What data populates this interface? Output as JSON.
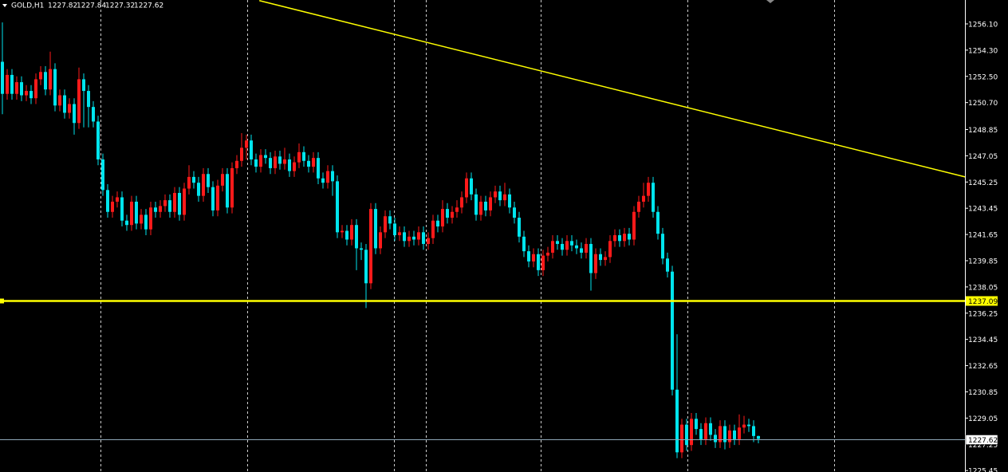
{
  "chart_data": {
    "type": "candlestick",
    "symbol": "GOLD,H1",
    "up_color": "#ff1a1a",
    "down_color": "#00e5ee",
    "ylim": [
      1225.35,
      1257.74
    ],
    "yticks": [
      {
        "value": 1256.1,
        "label": "1256.10"
      },
      {
        "value": 1254.3,
        "label": "1254.30"
      },
      {
        "value": 1252.5,
        "label": "1252.50"
      },
      {
        "value": 1250.7,
        "label": "1250.70"
      },
      1248.85,
      1247.05,
      1245.25,
      1243.45,
      1241.65,
      1239.85,
      1238.05,
      1236.25,
      1234.45,
      1232.65,
      1230.85,
      1229.05,
      1227.25,
      1225.45
    ],
    "vgrid": [
      20.5,
      51.2,
      81.8,
      88.5,
      112.5,
      143.2,
      173.8
    ],
    "hline": 1237.09,
    "hline_color": "#ffff00",
    "trend_line": {
      "x": [
        53.7,
        201.2
      ],
      "y": [
        1257.7,
        1245.6
      ],
      "color": "#ffff00"
    },
    "open": [
      1253.5,
      1251.3,
      1252.6,
      1251.3,
      1252.1,
      1251.2,
      1251.5,
      1251.0,
      1252.3,
      1252.8,
      1251.6,
      1253.0,
      1250.5,
      1251.2,
      1250.0,
      1250.6,
      1249.3,
      1252.3,
      1251.5,
      1250.4,
      1249.4,
      1246.8,
      1244.7,
      1243.2,
      1243.9,
      1244.2,
      1242.6,
      1242.3,
      1243.9,
      1242.4,
      1243.0,
      1242.0,
      1243.5,
      1243.2,
      1243.6,
      1244.0,
      1243.2,
      1244.5,
      1243.0,
      1244.8,
      1245.6,
      1245.2,
      1244.3,
      1245.8,
      1244.9,
      1243.3,
      1245.0,
      1245.8,
      1243.5,
      1246.2,
      1246.7,
      1247.6,
      1248.1,
      1246.8,
      1246.3,
      1247.1,
      1246.9,
      1246.2,
      1247.0,
      1246.5,
      1246.8,
      1246.0,
      1246.6,
      1247.3,
      1246.7,
      1246.3,
      1246.9,
      1245.5,
      1245.2,
      1246.0,
      1245.3,
      1241.8,
      1241.9,
      1241.3,
      1242.3,
      1240.7,
      1240.6,
      1238.3,
      1243.4,
      1240.7,
      1241.8,
      1242.9,
      1242.4,
      1241.6,
      1241.8,
      1241.2,
      1241.5,
      1241.3,
      1241.8,
      1241.0,
      1241.4,
      1242.6,
      1242.2,
      1243.4,
      1242.8,
      1243.2,
      1243.5,
      1244.2,
      1245.5,
      1244.4,
      1243.0,
      1243.9,
      1243.3,
      1244.2,
      1244.6,
      1244.0,
      1244.4,
      1243.5,
      1242.8,
      1241.5,
      1240.5,
      1239.8,
      1240.3,
      1239.2,
      1240.2,
      1240.4,
      1241.2,
      1241.0,
      1240.6,
      1241.2,
      1240.9,
      1240.7,
      1240.4,
      1241.0,
      1239.0,
      1240.3,
      1239.9,
      1240.1,
      1241.2,
      1241.6,
      1241.2,
      1241.7,
      1241.3,
      1243.2,
      1243.9,
      1244.3,
      1245.2,
      1243.2,
      1241.7,
      1240.0,
      1239.1,
      1231.0,
      1226.7,
      1228.6,
      1227.2,
      1229.0,
      1228.3,
      1227.6,
      1228.7,
      1227.9,
      1227.4,
      1228.5,
      1227.4,
      1228.2,
      1227.6,
      1228.4,
      1228.6,
      1228.5,
      1227.82
    ],
    "high": [
      1256.2,
      1253.0,
      1253.0,
      1252.5,
      1252.5,
      1251.9,
      1251.9,
      1252.7,
      1253.2,
      1253.2,
      1254.2,
      1253.4,
      1251.6,
      1251.6,
      1251.0,
      1251.0,
      1253.1,
      1252.7,
      1251.9,
      1250.8,
      1249.8,
      1247.2,
      1245.1,
      1244.3,
      1244.6,
      1244.6,
      1243.0,
      1244.3,
      1244.3,
      1243.4,
      1243.4,
      1243.9,
      1243.9,
      1244.0,
      1244.4,
      1244.4,
      1244.9,
      1244.9,
      1245.2,
      1246.4,
      1246.0,
      1245.6,
      1246.2,
      1246.2,
      1245.3,
      1245.4,
      1246.2,
      1246.2,
      1246.6,
      1247.1,
      1248.6,
      1248.5,
      1248.5,
      1247.2,
      1247.5,
      1247.5,
      1247.3,
      1247.4,
      1247.4,
      1247.6,
      1247.2,
      1247.0,
      1247.9,
      1247.7,
      1247.1,
      1247.3,
      1247.3,
      1245.9,
      1246.4,
      1246.4,
      1245.7,
      1242.3,
      1242.3,
      1242.7,
      1242.7,
      1241.1,
      1241.0,
      1243.8,
      1243.8,
      1242.2,
      1243.3,
      1243.3,
      1242.8,
      1242.2,
      1242.2,
      1241.9,
      1241.9,
      1242.2,
      1242.2,
      1241.8,
      1243.0,
      1243.0,
      1244.0,
      1243.8,
      1243.6,
      1244.0,
      1244.6,
      1245.9,
      1245.9,
      1244.8,
      1244.3,
      1244.3,
      1244.6,
      1245.0,
      1245.0,
      1245.2,
      1244.8,
      1243.9,
      1243.2,
      1241.9,
      1240.9,
      1240.7,
      1240.7,
      1240.6,
      1240.8,
      1241.6,
      1241.6,
      1241.4,
      1241.6,
      1241.6,
      1241.3,
      1241.1,
      1241.4,
      1241.4,
      1240.7,
      1240.7,
      1240.5,
      1241.6,
      1242.0,
      1242.0,
      1242.1,
      1242.1,
      1243.6,
      1244.3,
      1245.2,
      1245.6,
      1245.6,
      1243.6,
      1242.1,
      1240.4,
      1239.5,
      1234.8,
      1229.0,
      1229.0,
      1229.4,
      1229.4,
      1228.7,
      1229.1,
      1229.1,
      1228.3,
      1228.9,
      1228.9,
      1228.6,
      1228.6,
      1229.3,
      1229.2,
      1229.0,
      1228.9,
      1227.84
    ],
    "low": [
      1249.9,
      1250.9,
      1250.9,
      1250.9,
      1250.8,
      1250.8,
      1250.6,
      1250.6,
      1251.9,
      1251.2,
      1251.2,
      1250.1,
      1250.1,
      1249.6,
      1249.6,
      1248.5,
      1248.9,
      1249.0,
      1249.0,
      1249.0,
      1246.4,
      1244.3,
      1242.8,
      1242.8,
      1243.5,
      1242.2,
      1241.9,
      1241.9,
      1242.0,
      1242.0,
      1241.6,
      1241.6,
      1242.8,
      1242.8,
      1243.2,
      1242.8,
      1242.8,
      1242.6,
      1242.6,
      1244.4,
      1244.8,
      1243.9,
      1243.9,
      1244.5,
      1242.9,
      1242.9,
      1244.6,
      1243.1,
      1243.1,
      1245.8,
      1246.3,
      1246.8,
      1246.4,
      1245.9,
      1245.9,
      1246.5,
      1245.8,
      1245.8,
      1246.1,
      1246.1,
      1245.6,
      1245.6,
      1246.2,
      1246.3,
      1245.9,
      1245.9,
      1245.1,
      1244.8,
      1244.8,
      1244.3,
      1241.4,
      1241.4,
      1240.9,
      1240.9,
      1239.2,
      1239.9,
      1236.6,
      1237.9,
      1240.3,
      1240.3,
      1241.4,
      1242.0,
      1241.2,
      1241.2,
      1240.8,
      1240.8,
      1240.9,
      1240.9,
      1240.6,
      1240.6,
      1241.0,
      1241.8,
      1241.8,
      1242.4,
      1242.4,
      1242.8,
      1243.1,
      1243.8,
      1244.0,
      1242.6,
      1242.6,
      1242.9,
      1242.9,
      1243.8,
      1243.6,
      1243.6,
      1243.1,
      1242.4,
      1241.1,
      1240.1,
      1239.4,
      1239.4,
      1238.8,
      1238.8,
      1239.8,
      1240.0,
      1240.6,
      1240.2,
      1240.2,
      1240.5,
      1240.3,
      1240.0,
      1240.0,
      1237.8,
      1238.6,
      1239.5,
      1239.5,
      1239.7,
      1240.8,
      1240.8,
      1240.8,
      1240.9,
      1240.9,
      1242.8,
      1243.5,
      1243.9,
      1242.8,
      1241.3,
      1239.6,
      1238.7,
      1230.6,
      1226.3,
      1226.3,
      1226.8,
      1226.8,
      1227.9,
      1227.2,
      1227.2,
      1227.5,
      1227.0,
      1227.0,
      1226.9,
      1227.0,
      1227.2,
      1227.2,
      1228.0,
      1228.1,
      1227.4,
      1227.32
    ],
    "close": [
      1251.3,
      1252.6,
      1251.3,
      1252.1,
      1251.2,
      1251.5,
      1251.0,
      1252.3,
      1252.8,
      1251.6,
      1253.0,
      1250.5,
      1251.2,
      1250.0,
      1250.6,
      1249.3,
      1252.3,
      1251.5,
      1250.4,
      1249.4,
      1246.8,
      1244.7,
      1243.2,
      1243.9,
      1244.2,
      1242.6,
      1242.3,
      1243.9,
      1242.4,
      1243.0,
      1242.0,
      1243.5,
      1243.2,
      1243.6,
      1244.0,
      1243.2,
      1244.5,
      1243.0,
      1244.8,
      1245.6,
      1245.2,
      1244.3,
      1245.8,
      1244.9,
      1243.3,
      1245.0,
      1245.8,
      1243.5,
      1246.2,
      1246.7,
      1247.6,
      1248.1,
      1246.8,
      1246.3,
      1247.1,
      1246.9,
      1246.2,
      1247.0,
      1246.5,
      1246.8,
      1246.0,
      1246.6,
      1247.3,
      1246.7,
      1246.3,
      1246.9,
      1245.5,
      1245.2,
      1246.0,
      1245.3,
      1241.8,
      1241.9,
      1241.3,
      1242.3,
      1240.7,
      1240.6,
      1238.3,
      1243.4,
      1240.7,
      1241.8,
      1242.9,
      1242.4,
      1241.6,
      1241.8,
      1241.2,
      1241.5,
      1241.3,
      1241.8,
      1241.0,
      1241.4,
      1242.6,
      1242.2,
      1243.4,
      1242.8,
      1243.2,
      1243.5,
      1244.2,
      1245.5,
      1244.4,
      1243.0,
      1243.9,
      1243.3,
      1244.2,
      1244.6,
      1244.0,
      1244.4,
      1243.5,
      1242.8,
      1241.5,
      1240.5,
      1239.8,
      1240.3,
      1239.2,
      1240.2,
      1240.4,
      1241.2,
      1241.0,
      1240.6,
      1241.2,
      1240.9,
      1240.7,
      1240.4,
      1241.0,
      1239.0,
      1240.3,
      1239.9,
      1240.1,
      1241.2,
      1241.6,
      1241.2,
      1241.7,
      1241.3,
      1243.2,
      1243.9,
      1244.3,
      1245.2,
      1243.2,
      1241.7,
      1240.0,
      1239.1,
      1231.0,
      1226.7,
      1228.6,
      1227.2,
      1229.0,
      1228.3,
      1227.6,
      1228.7,
      1227.9,
      1227.4,
      1228.5,
      1227.4,
      1228.2,
      1227.6,
      1228.4,
      1228.6,
      1228.5,
      1227.82,
      1227.62
    ]
  }
}
